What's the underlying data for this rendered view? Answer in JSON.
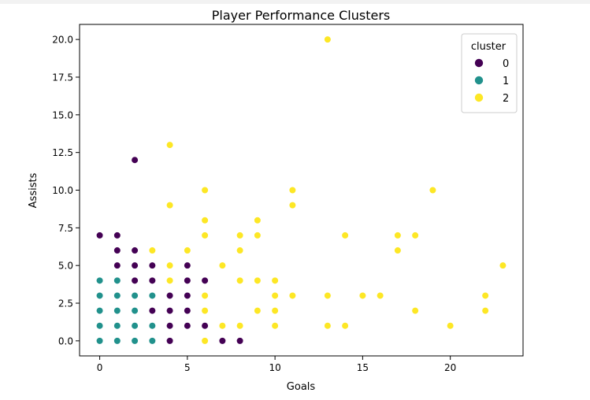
{
  "chart_data": {
    "type": "scatter",
    "title": "Player Performance Clusters",
    "xlabel": "Goals",
    "ylabel": "Assists",
    "xlim": [
      -1.15,
      24.15
    ],
    "ylim": [
      -1.0,
      21.0
    ],
    "xticks": [
      0,
      5,
      10,
      15,
      20
    ],
    "yticks": [
      0.0,
      2.5,
      5.0,
      7.5,
      10.0,
      12.5,
      15.0,
      17.5,
      20.0
    ],
    "xtick_labels": [
      "0",
      "5",
      "10",
      "15",
      "20"
    ],
    "ytick_labels": [
      "0.0",
      "2.5",
      "5.0",
      "7.5",
      "10.0",
      "12.5",
      "15.0",
      "17.5",
      "20.0"
    ],
    "grid": false,
    "legend": {
      "title": "cluster",
      "placement": "top-right"
    },
    "series": [
      {
        "name": "0",
        "color": "#440154",
        "points": [
          [
            0,
            7
          ],
          [
            1,
            7
          ],
          [
            1,
            6
          ],
          [
            2,
            6
          ],
          [
            2,
            12
          ],
          [
            1,
            5
          ],
          [
            2,
            5
          ],
          [
            3,
            5
          ],
          [
            5,
            5
          ],
          [
            1,
            4
          ],
          [
            2,
            4
          ],
          [
            3,
            4
          ],
          [
            5,
            4
          ],
          [
            6,
            4
          ],
          [
            1,
            3
          ],
          [
            2,
            3
          ],
          [
            4,
            3
          ],
          [
            5,
            3
          ],
          [
            2,
            2
          ],
          [
            3,
            2
          ],
          [
            4,
            2
          ],
          [
            5,
            2
          ],
          [
            6,
            2
          ],
          [
            4,
            1
          ],
          [
            5,
            1
          ],
          [
            6,
            1
          ],
          [
            4,
            0
          ],
          [
            7,
            0
          ],
          [
            8,
            0
          ]
        ]
      },
      {
        "name": "1",
        "color": "#21918c",
        "points": [
          [
            0,
            4
          ],
          [
            1,
            4
          ],
          [
            0,
            3
          ],
          [
            1,
            3
          ],
          [
            0,
            2
          ],
          [
            1,
            2
          ],
          [
            2,
            2
          ],
          [
            0,
            1
          ],
          [
            1,
            1
          ],
          [
            2,
            1
          ],
          [
            3,
            1
          ],
          [
            2,
            3
          ],
          [
            3,
            3
          ],
          [
            0,
            0
          ],
          [
            1,
            0
          ],
          [
            2,
            0
          ],
          [
            3,
            0
          ]
        ]
      },
      {
        "name": "2",
        "color": "#fde725",
        "points": [
          [
            13,
            20
          ],
          [
            4,
            13
          ],
          [
            6,
            10
          ],
          [
            11,
            10
          ],
          [
            19,
            10
          ],
          [
            4,
            9
          ],
          [
            11,
            9
          ],
          [
            6,
            8
          ],
          [
            9,
            8
          ],
          [
            6,
            7
          ],
          [
            8,
            7
          ],
          [
            9,
            7
          ],
          [
            14,
            7
          ],
          [
            17,
            7
          ],
          [
            18,
            7
          ],
          [
            3,
            6
          ],
          [
            5,
            6
          ],
          [
            8,
            6
          ],
          [
            17,
            6
          ],
          [
            4,
            5
          ],
          [
            7,
            5
          ],
          [
            23,
            5
          ],
          [
            4,
            4
          ],
          [
            8,
            4
          ],
          [
            9,
            4
          ],
          [
            10,
            4
          ],
          [
            6,
            3
          ],
          [
            10,
            3
          ],
          [
            11,
            3
          ],
          [
            13,
            3
          ],
          [
            15,
            3
          ],
          [
            16,
            3
          ],
          [
            22,
            3
          ],
          [
            6,
            2
          ],
          [
            9,
            2
          ],
          [
            10,
            2
          ],
          [
            18,
            2
          ],
          [
            22,
            2
          ],
          [
            7,
            1
          ],
          [
            8,
            1
          ],
          [
            10,
            1
          ],
          [
            13,
            1
          ],
          [
            14,
            1
          ],
          [
            20,
            1
          ],
          [
            6,
            0
          ]
        ]
      }
    ]
  }
}
